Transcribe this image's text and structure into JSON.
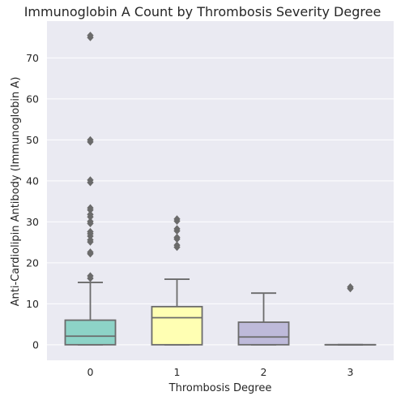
{
  "chart_data": {
    "type": "box",
    "title": "Immunoglobin A Count by Thrombosis Severity Degree",
    "xlabel": "Thrombosis Degree",
    "ylabel": "Anti-Cardiolipin Antibody (Immunoglobin A)",
    "ylim": [
      -3.8,
      79
    ],
    "yticks": [
      0,
      10,
      20,
      30,
      40,
      50,
      60,
      70
    ],
    "categories": [
      "0",
      "1",
      "2",
      "3"
    ],
    "grid": true,
    "background": "#eaeaf2",
    "box_edge_color": "#6b6b6b",
    "flier_color": "#6b6b6b",
    "boxes": [
      {
        "category": "0",
        "color": "#8dd3c7",
        "whislo": 0,
        "q1": 0,
        "med": 2.1,
        "q3": 6.0,
        "whishi": 15.2,
        "fliers": [
          16.2,
          16.8,
          22.2,
          22.6,
          25.1,
          25.6,
          26.5,
          27.1,
          27.6,
          29.6,
          30.1,
          31.2,
          31.8,
          32.9,
          33.4,
          39.6,
          40.2,
          49.5,
          50.0,
          75.0,
          75.5
        ]
      },
      {
        "category": "1",
        "color": "#ffffb3",
        "whislo": 0,
        "q1": 0,
        "med": 6.6,
        "q3": 9.3,
        "whishi": 16.0,
        "fliers": [
          23.8,
          24.3,
          25.8,
          26.2,
          27.8,
          28.3,
          30.2,
          30.7
        ]
      },
      {
        "category": "2",
        "color": "#bebada",
        "whislo": 0,
        "q1": 0,
        "med": 1.9,
        "q3": 5.5,
        "whishi": 12.6,
        "fliers": []
      },
      {
        "category": "3",
        "color": "#fb8072",
        "whislo": 0,
        "q1": 0,
        "med": 0,
        "q3": 0,
        "whishi": 0,
        "fliers": [
          13.7,
          14.1
        ]
      }
    ]
  }
}
